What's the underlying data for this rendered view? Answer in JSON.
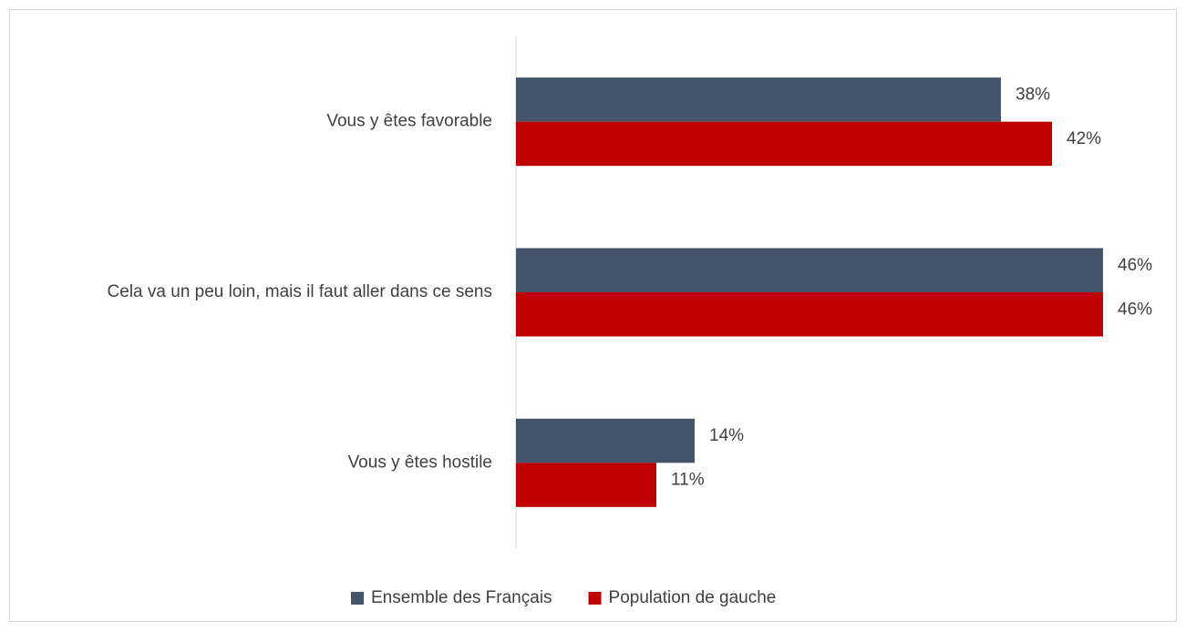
{
  "chart_data": {
    "type": "hbar",
    "categories": [
      "Vous y êtes favorable",
      "Cela va un peu loin, mais il faut aller dans ce sens",
      "Vous y êtes hostile"
    ],
    "series": [
      {
        "name": "Ensemble des Français",
        "color": "#44546a",
        "values": [
          38,
          46,
          14
        ],
        "value_labels": [
          "38%",
          "46%",
          "14%"
        ]
      },
      {
        "name": "Population de gauche",
        "color": "#c00000",
        "values": [
          42,
          46,
          11
        ],
        "value_labels": [
          "42%",
          "46%",
          "11%"
        ]
      }
    ],
    "legend": "bottom"
  }
}
